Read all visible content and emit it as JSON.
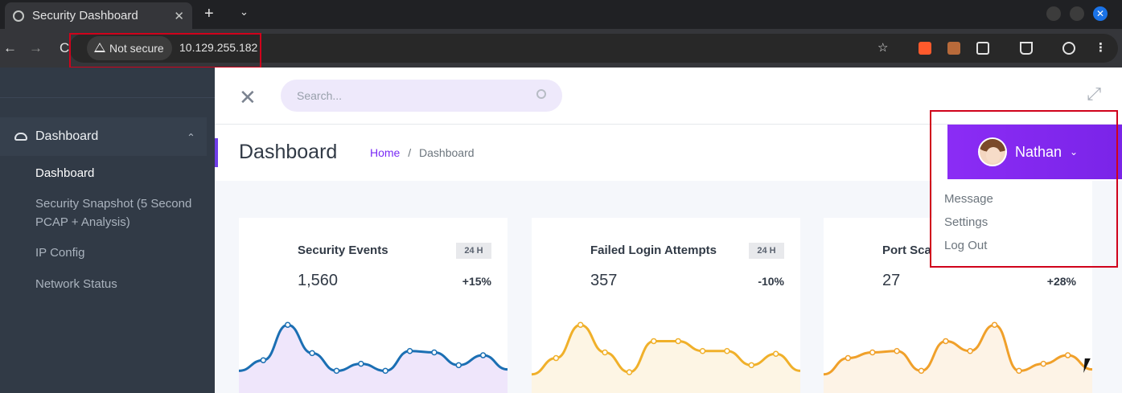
{
  "browser": {
    "tab_title": "Security Dashboard",
    "tab_close": "✕",
    "new_tab": "+",
    "tab_menu": "⌄",
    "security_label": "Not secure",
    "url": "10.129.255.182",
    "back": "←",
    "forward": "→",
    "reload": "C",
    "star": "☆",
    "menu": "⋮",
    "window_close": "✕"
  },
  "sidebar": {
    "section_label": "Dashboard",
    "section_chevron": "⌄",
    "items": [
      {
        "label": "Dashboard"
      },
      {
        "label": "Security Snapshot (5 Second PCAP + Analysis)"
      },
      {
        "label": "IP Config"
      },
      {
        "label": "Network Status"
      }
    ]
  },
  "topbar": {
    "close_glyph": "✕",
    "search_placeholder": "Search...",
    "expand_glyph": "⤢"
  },
  "page": {
    "title": "Dashboard",
    "breadcrumb_home": "Home",
    "breadcrumb_sep": "/",
    "breadcrumb_current": "Dashboard"
  },
  "user": {
    "name": "Nathan",
    "chevron": "⌄",
    "menu": [
      "Message",
      "Settings",
      "Log Out"
    ]
  },
  "cards": [
    {
      "title": "Security Events",
      "badge": "24 H",
      "value": "1,560",
      "delta": "+15%",
      "color": "#1b6fb3",
      "fill": "#efe6fb",
      "trend": [
        20,
        35,
        85,
        45,
        20,
        30,
        20,
        48,
        46,
        28,
        42,
        22
      ]
    },
    {
      "title": "Failed Login Attempts",
      "badge": "24 H",
      "value": "357",
      "delta": "-10%",
      "color": "#f0b02a",
      "fill": "#fdf5e4",
      "trend": [
        15,
        38,
        85,
        46,
        18,
        62,
        62,
        48,
        48,
        28,
        44,
        20
      ]
    },
    {
      "title": "Port Sca",
      "badge": "",
      "value": "27",
      "delta": "+28%",
      "color": "#f0a02a",
      "fill": "#fdf3e6",
      "trend": [
        15,
        38,
        46,
        48,
        20,
        62,
        48,
        85,
        20,
        30,
        42,
        22
      ]
    }
  ],
  "colors": {
    "accent": "#7a2bf5",
    "sidebar": "#313a46",
    "highlight": "#d0021b"
  }
}
